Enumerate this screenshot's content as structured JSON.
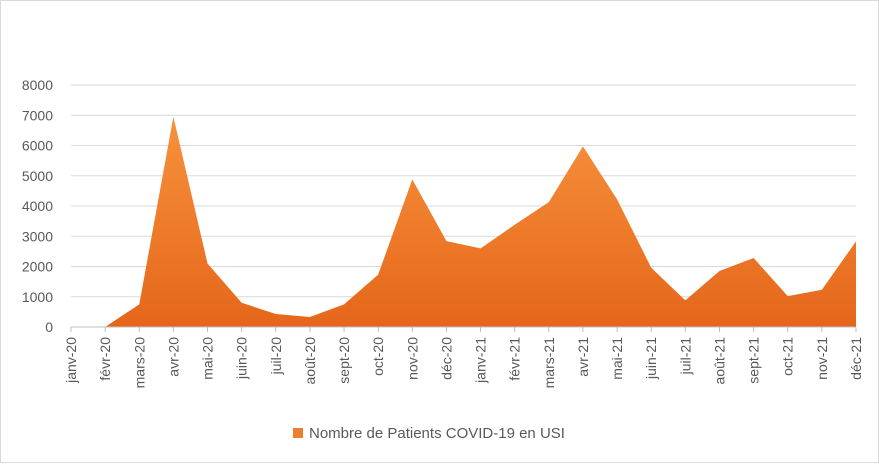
{
  "chart_data": {
    "type": "area",
    "categories": [
      "janv-20",
      "févr-20",
      "mars-20",
      "avr-20",
      "mai-20",
      "juin-20",
      "juil-20",
      "août-20",
      "sept-20",
      "oct-20",
      "nov-20",
      "déc-20",
      "janv-21",
      "févr-21",
      "mars-21",
      "avr-21",
      "mai-21",
      "juin-21",
      "juil-21",
      "août-21",
      "sept-21",
      "oct-21",
      "nov-21",
      "déc-21"
    ],
    "series": [
      {
        "name": "Nombre de Patients COVID-19 en USI",
        "values": [
          null,
          0,
          750,
          6950,
          2100,
          800,
          430,
          330,
          750,
          1730,
          4880,
          2840,
          2600,
          3380,
          4130,
          5970,
          4220,
          1960,
          880,
          1850,
          2280,
          1020,
          1230,
          2830
        ],
        "color": "#ed7d31"
      }
    ],
    "yticks": [
      0,
      1000,
      2000,
      3000,
      4000,
      5000,
      6000,
      7000,
      8000
    ],
    "ylim": [
      0,
      8000
    ],
    "grid": true,
    "legend": "bottom"
  }
}
